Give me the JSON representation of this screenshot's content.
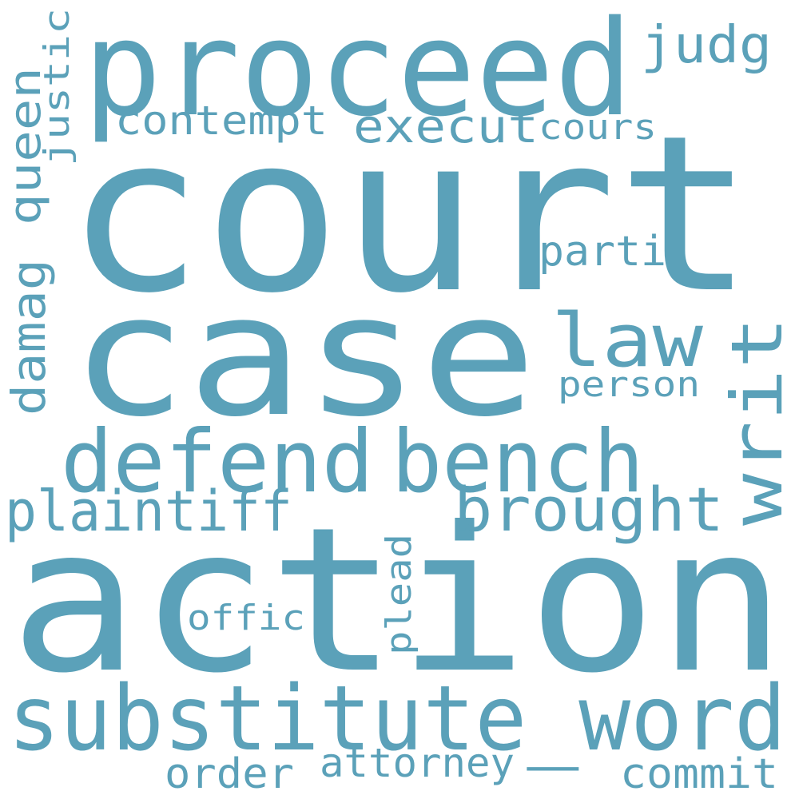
{
  "word_color": "#5ba1b9",
  "background": "#ffffff",
  "words": {
    "court": "court",
    "action": "action",
    "case": "case",
    "proceed": "proceed",
    "substitute_word": "substitute_word",
    "defend": "defend",
    "bench": "bench",
    "writ": "writ",
    "law": "law",
    "brought": "brought",
    "plaintiff": "plaintiff",
    "execut": "execut",
    "judg": "judg",
    "contempt": "contempt",
    "cours": "cours",
    "justic": "justic",
    "queen": "queen",
    "damag": "damag",
    "parti": "parti",
    "person": "person",
    "plead": "plead",
    "offic": "offic",
    "order": "order",
    "attorney": "attorney",
    "commit": "commit"
  }
}
